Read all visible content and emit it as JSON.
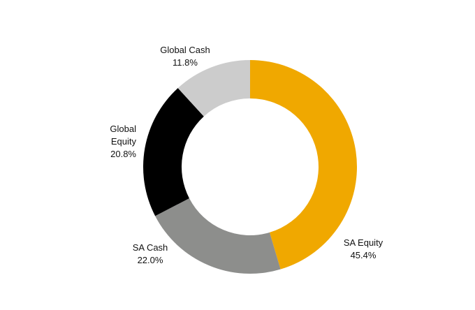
{
  "chart_data": {
    "type": "pie",
    "categories": [
      "SA Equity",
      "SA Cash",
      "Global Equity",
      "Global Cash"
    ],
    "values": [
      45.4,
      22.0,
      20.8,
      11.8
    ],
    "value_labels": [
      "45.4%",
      "22.0%",
      "20.8%",
      "11.8%"
    ],
    "colors": [
      "#f0a800",
      "#8d8e8c",
      "#000000",
      "#cccccc"
    ],
    "donut": true
  }
}
